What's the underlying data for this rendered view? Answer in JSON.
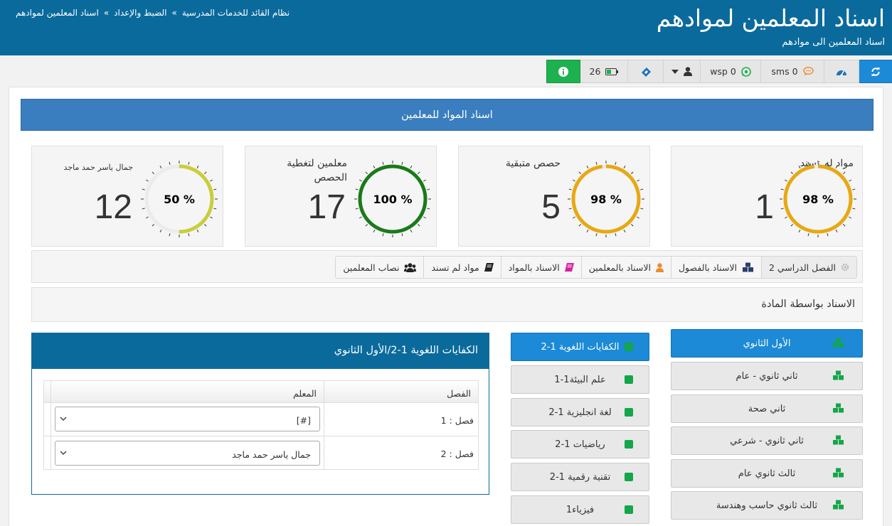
{
  "header": {
    "title": "اسناد المعلمين لموادهم",
    "subtitle": "اسناد المعلمين الى موادهم",
    "breadcrumbs": [
      "نظام القائد للخدمات المدرسية",
      "الضبط والإعداد",
      "اسناد المعلمين لموادهم"
    ]
  },
  "toolbar": {
    "battery_count": "26",
    "wsp_label": "wsp 0",
    "sms_label": "sms 0"
  },
  "panel": {
    "title": "اسناد المواد للمعلمين"
  },
  "stats": [
    {
      "label": "مواد لم تسند",
      "value": "1",
      "percent": 98,
      "percent_text": "98 %",
      "color": "#e8a811"
    },
    {
      "label": "حصص متبقية",
      "value": "5",
      "percent": 98,
      "percent_text": "98 %",
      "color": "#e8a811"
    },
    {
      "label": "معلمين لتغطية الحصص",
      "value": "17",
      "percent": 100,
      "percent_text": "100 %",
      "color": "#1a7a1a"
    },
    {
      "label": "جمال ياسر حمد ماجد",
      "value": "12",
      "percent": 50,
      "percent_text": "50 %",
      "color": "#c9cd3b"
    }
  ],
  "tabs": [
    {
      "label": "الفصل الدراسي 2",
      "icon": "gear-icon"
    },
    {
      "label": "الاسناد بالفصول",
      "icon": "cubes-icon"
    },
    {
      "label": "الاسناد بالمعلمين",
      "icon": "user-icon"
    },
    {
      "label": "الاسناد بالمواد",
      "icon": "book-icon"
    },
    {
      "label": "مواد لم تسند",
      "icon": "book-dark-icon"
    },
    {
      "label": "نصاب المعلمين",
      "icon": "users-icon"
    }
  ],
  "section": {
    "title": "الاسناد بواسطة المادة"
  },
  "levels": [
    {
      "label": "الأول الثانوي",
      "active": true
    },
    {
      "label": "ثاني ثانوي - عام",
      "active": false
    },
    {
      "label": "ثاني صحة",
      "active": false
    },
    {
      "label": "ثاني ثانوي - شرعي",
      "active": false
    },
    {
      "label": "ثالث ثانوي عام",
      "active": false
    },
    {
      "label": "ثالث ثانوي حاسب وهندسة",
      "active": false
    }
  ],
  "subjects": [
    {
      "label": "الكفايات اللغوية 1-2",
      "active": true
    },
    {
      "label": "علم البيئة1-1",
      "active": false
    },
    {
      "label": "لغة انجليزية 1-2",
      "active": false
    },
    {
      "label": "رياضيات 1-2",
      "active": false
    },
    {
      "label": "تقنية رقمية 1-2",
      "active": false
    },
    {
      "label": "فيزياء1",
      "active": false
    }
  ],
  "assignment": {
    "title": "الكفايات اللغوية 1-2/الأول الثانوي",
    "col_class": "الفصل",
    "col_teacher": "المعلم",
    "rows": [
      {
        "class": "فصل : 1",
        "teacher": "[#]"
      },
      {
        "class": "فصل : 2",
        "teacher": "جمال ياسر حمد ماجد"
      }
    ]
  },
  "colors": {
    "header_bg": "#0b6a9c",
    "panel_bg": "#3a7ebf",
    "active_btn": "#1c8ad6",
    "info_btn": "#1db14f",
    "refresh_btn": "#1c8ad6"
  }
}
